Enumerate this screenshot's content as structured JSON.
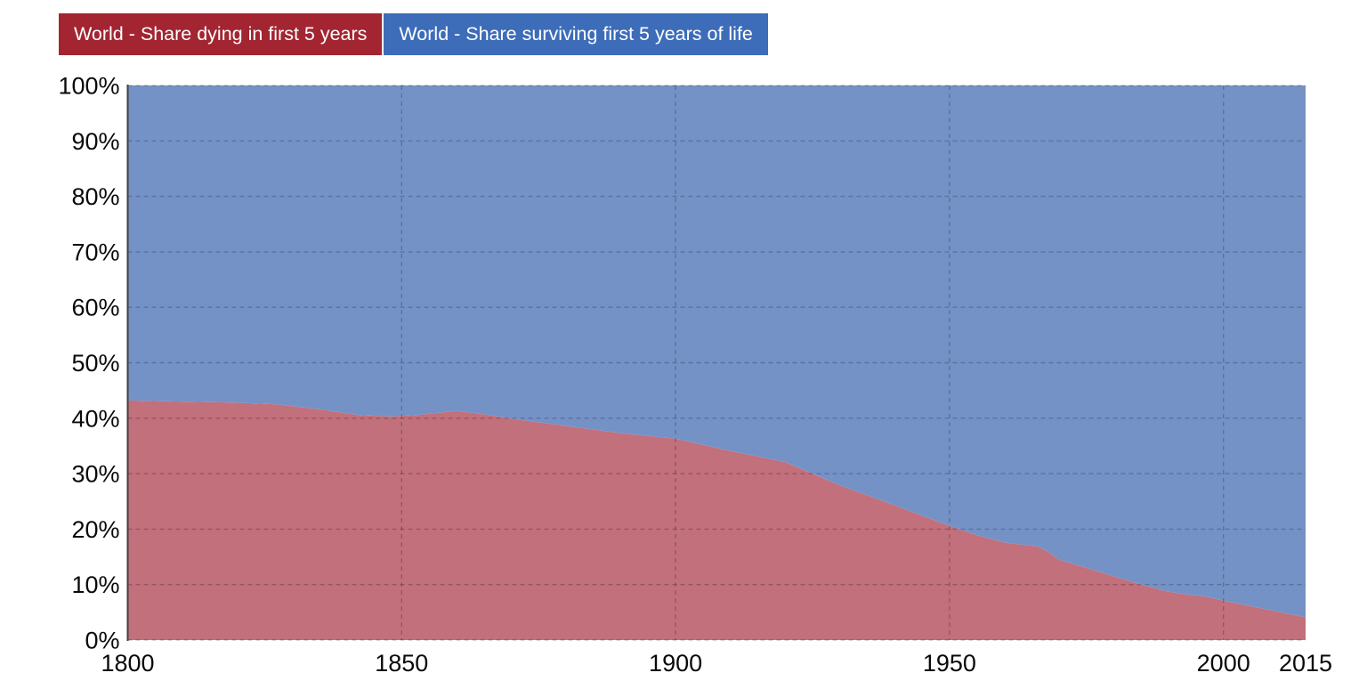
{
  "legend": {
    "items": [
      {
        "label": "World - Share dying in first 5 years",
        "color": "#a22531"
      },
      {
        "label": "World - Share surviving first 5 years of life",
        "color": "#3d6cb9"
      }
    ]
  },
  "chart_data": {
    "type": "area",
    "stacked": true,
    "title": "",
    "xlabel": "",
    "ylabel": "",
    "x_range": [
      1800,
      2015
    ],
    "y_range": [
      0,
      100
    ],
    "x_ticks": [
      "1800",
      "1850",
      "1900",
      "1950",
      "2000",
      "2015"
    ],
    "x_tick_years": [
      1800,
      1850,
      1900,
      1950,
      2000,
      2015
    ],
    "y_ticks": [
      "0%",
      "10%",
      "20%",
      "30%",
      "40%",
      "50%",
      "60%",
      "70%",
      "80%",
      "90%",
      "100%"
    ],
    "y_tick_values": [
      0,
      10,
      20,
      30,
      40,
      50,
      60,
      70,
      80,
      90,
      100
    ],
    "v_gridline_years": [
      1850,
      1900,
      1950,
      2000
    ],
    "grid": "dashed",
    "legend_position": "top-left",
    "x": [
      1800,
      1810,
      1820,
      1827,
      1835,
      1842,
      1848,
      1853,
      1860,
      1865,
      1870,
      1880,
      1890,
      1900,
      1905,
      1910,
      1915,
      1920,
      1925,
      1930,
      1935,
      1940,
      1945,
      1950,
      1955,
      1960,
      1963,
      1966,
      1968,
      1970,
      1975,
      1980,
      1985,
      1990,
      1994,
      1997,
      2000,
      2005,
      2010,
      2015
    ],
    "series": [
      {
        "name": "World - Share dying in first 5 years",
        "fill": "#c2707b",
        "values": [
          43.2,
          43.0,
          42.8,
          42.5,
          41.6,
          40.6,
          40.3,
          40.6,
          41.3,
          40.7,
          39.9,
          38.6,
          37.3,
          36.3,
          35.2,
          34.1,
          33.1,
          32.1,
          30.0,
          27.9,
          26.1,
          24.3,
          22.4,
          20.6,
          18.9,
          17.6,
          17.2,
          16.9,
          15.9,
          14.5,
          13.0,
          11.5,
          10.0,
          8.7,
          8.1,
          7.8,
          7.1,
          6.1,
          5.1,
          4.1
        ]
      },
      {
        "name": "World - Share surviving first 5 years of life",
        "fill": "#7592c7",
        "values": [
          56.8,
          57.0,
          57.2,
          57.5,
          58.4,
          59.4,
          59.7,
          59.4,
          58.7,
          59.3,
          60.1,
          61.4,
          62.7,
          63.7,
          64.8,
          65.9,
          66.9,
          67.9,
          70.0,
          72.1,
          73.9,
          75.7,
          77.6,
          79.4,
          81.1,
          82.4,
          82.8,
          83.1,
          84.1,
          85.5,
          87.0,
          88.5,
          90.0,
          91.3,
          91.9,
          92.2,
          92.9,
          93.9,
          94.9,
          95.9
        ]
      }
    ]
  },
  "colors": {
    "gridline": "rgba(0,0,0,0.22)",
    "axis": "#404040",
    "tick_text": "#0a0a0a",
    "background": "#ffffff"
  }
}
